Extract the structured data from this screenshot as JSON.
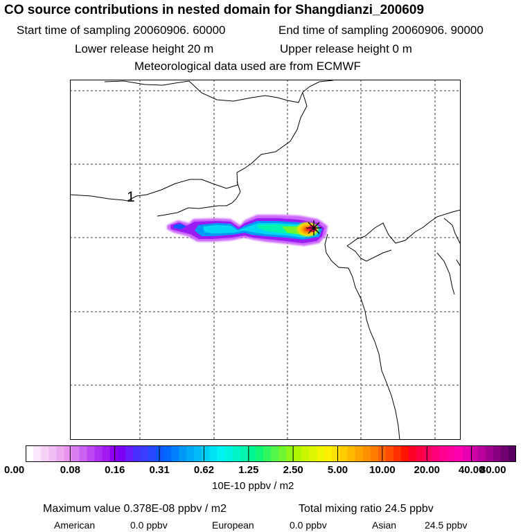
{
  "header": {
    "title": "CO  source contributions in nested domain for Shangdianzi_200609",
    "start_label": "Start time of sampling 20060906. 60000",
    "end_label": "End time of sampling 20060906. 90000",
    "lower_label": "Lower release height   20 m",
    "upper_label": "Upper release height    0 m",
    "met_label": "Meteorological data used are from ECMWF"
  },
  "map": {
    "marker_label": "1",
    "colors": {
      "coast": "#000000",
      "grid": "#000000",
      "station": "#000000"
    }
  },
  "colorbar": {
    "unit": "10E-10 ppbv / m2",
    "tick_labels": [
      "0.00",
      "0.08",
      "0.16",
      "0.31",
      "0.62",
      "1.25",
      "2.50",
      "5.00",
      "10.00",
      "20.00",
      "40.00",
      "80.00"
    ],
    "colors": [
      "#ffffff",
      "#fbe6fb",
      "#f7d2f7",
      "#f3bef3",
      "#eeaaef",
      "#e995f0",
      "#d97ef2",
      "#cb63f2",
      "#bd48f2",
      "#ae2ef2",
      "#a21af0",
      "#9000f0",
      "#7a00f4",
      "#6a1cff",
      "#4a30ff",
      "#3a3cff",
      "#2648ff",
      "#1058ff",
      "#0068ff",
      "#0080ff",
      "#0098f6",
      "#00aaf6",
      "#00bcf6",
      "#00d0f6",
      "#00e2f6",
      "#00f2f2",
      "#00f5e0",
      "#00f6c6",
      "#00f6ac",
      "#00f690",
      "#10f676",
      "#30f660",
      "#50f648",
      "#70f630",
      "#90f618",
      "#b0f600",
      "#c8f600",
      "#dcf600",
      "#f0f600",
      "#fff000",
      "#ffe000",
      "#ffcc00",
      "#ffb800",
      "#ffa400",
      "#ff9000",
      "#ff7c00",
      "#ff6600",
      "#ff4c00",
      "#ff3000",
      "#ff1400",
      "#ff0028",
      "#ff0044",
      "#ff0060",
      "#ff007c",
      "#ff0090",
      "#ff00a0",
      "#ff00b0",
      "#e800b0",
      "#d000a8",
      "#b8009c",
      "#a0008e",
      "#880080",
      "#700070",
      "#580060"
    ]
  },
  "footer": {
    "max_label": "Maximum value  0.378E-08 ppbv / m2",
    "total_label": "Total mixing ratio       24.5 ppbv",
    "american_label": "American",
    "american_value": "0.0 ppbv",
    "european_label": "European",
    "european_value": "0.0 ppbv",
    "asian_label": "Asian",
    "asian_value": "24.5 ppbv"
  }
}
